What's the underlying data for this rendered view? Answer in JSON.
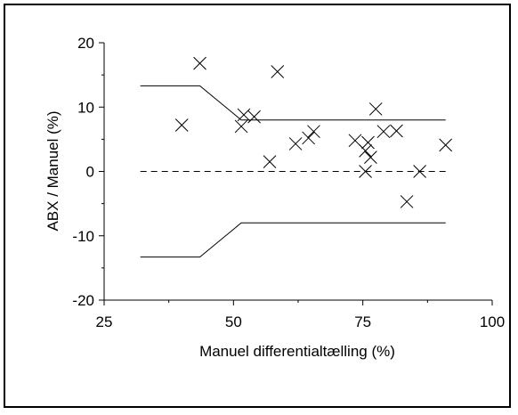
{
  "chart_data": {
    "type": "scatter",
    "xlabel": "Manuel differentialtælling (%)",
    "ylabel": "ABX / Manuel (%)",
    "xlim": [
      25,
      100
    ],
    "ylim": [
      -20,
      20
    ],
    "xticks": [
      "25",
      "50",
      "75",
      "100"
    ],
    "yticks": [
      "20",
      "10",
      "0",
      "-10",
      "-20"
    ],
    "xtick_values": [
      25,
      50,
      75,
      100
    ],
    "ytick_values": [
      20,
      10,
      0,
      -10,
      -20
    ],
    "grid": false,
    "points": [
      {
        "x": 40,
        "y": 7.2
      },
      {
        "x": 43.5,
        "y": 16.8
      },
      {
        "x": 51.5,
        "y": 7.0
      },
      {
        "x": 52,
        "y": 8.8
      },
      {
        "x": 54,
        "y": 8.5
      },
      {
        "x": 57,
        "y": 1.5
      },
      {
        "x": 58.5,
        "y": 15.5
      },
      {
        "x": 62,
        "y": 4.3
      },
      {
        "x": 64.5,
        "y": 5.2
      },
      {
        "x": 65.5,
        "y": 6.2
      },
      {
        "x": 73.5,
        "y": 4.8
      },
      {
        "x": 75.5,
        "y": 0.0
      },
      {
        "x": 75.5,
        "y": 3.2
      },
      {
        "x": 76,
        "y": 4.5
      },
      {
        "x": 76.5,
        "y": 2.2
      },
      {
        "x": 77.5,
        "y": 9.7
      },
      {
        "x": 79,
        "y": 6.2
      },
      {
        "x": 81.5,
        "y": 6.3
      },
      {
        "x": 83.5,
        "y": -4.7
      },
      {
        "x": 86,
        "y": 0.0
      },
      {
        "x": 91,
        "y": 4.1
      }
    ],
    "limit_lines": [
      {
        "style": "solid",
        "x": [
          32,
          43.5,
          51.5,
          91
        ],
        "y": [
          13.3,
          13.3,
          8.0,
          8.0
        ]
      },
      {
        "style": "solid",
        "x": [
          32,
          43.5,
          51.5,
          91
        ],
        "y": [
          -13.3,
          -13.3,
          -8.0,
          -8.0
        ]
      },
      {
        "style": "dashed",
        "x": [
          32,
          91
        ],
        "y": [
          0,
          0
        ]
      }
    ]
  }
}
